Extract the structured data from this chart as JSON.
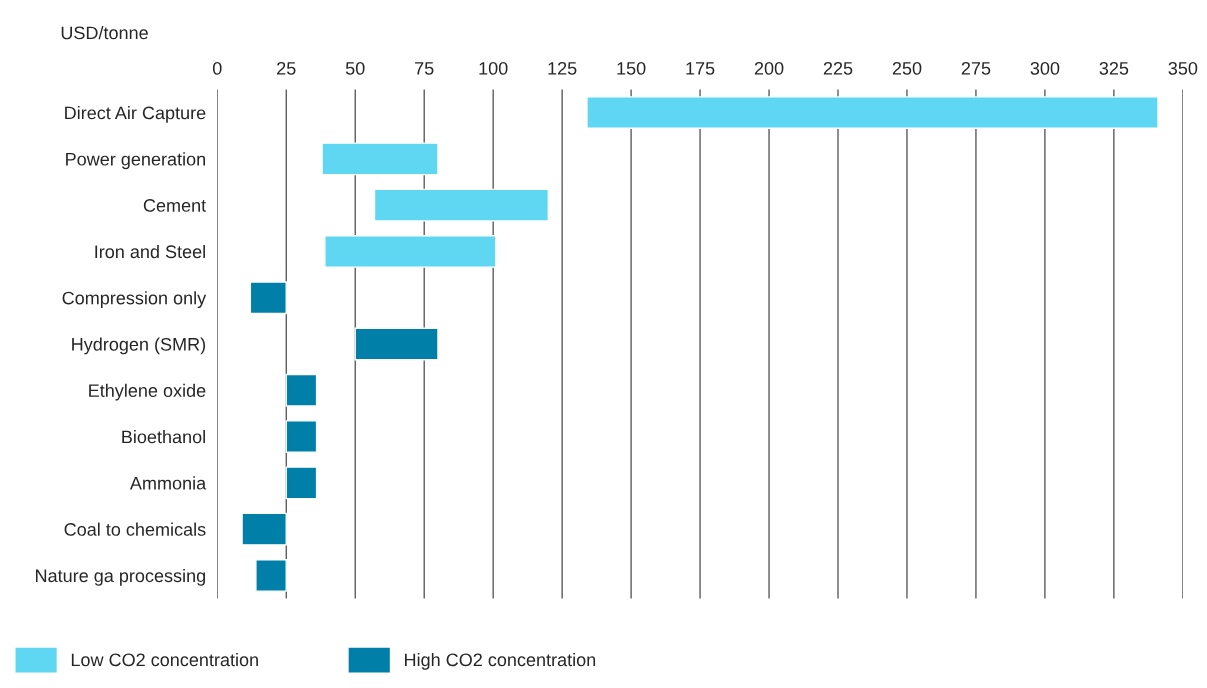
{
  "chart_data": {
    "type": "bar",
    "orientation": "horizontal",
    "xlabel": "USD/tonne",
    "categories": [
      "Direct Air Capture",
      "Power generation",
      "Cement",
      "Iron and Steel",
      "Compression only",
      "Hydrogen (SMR)",
      "Ethylene oxide",
      "Bioethanol",
      "Ammonia",
      "Coal to chemicals",
      "Nature ga processing"
    ],
    "series": [
      {
        "name": "Low CO2 concentration",
        "color": "#5fd7f2",
        "base": [
          134,
          38,
          57,
          39,
          null,
          null,
          null,
          null,
          null,
          null,
          null
        ],
        "values": [
          207,
          42,
          63,
          62,
          null,
          null,
          null,
          null,
          null,
          null,
          null
        ]
      },
      {
        "name": "High CO2 concentration",
        "color": "#007fa8",
        "base": [
          null,
          null,
          null,
          null,
          12,
          50,
          25,
          25,
          25,
          9,
          14
        ],
        "values": [
          null,
          null,
          null,
          null,
          13,
          30,
          11,
          11,
          11,
          16,
          11
        ]
      }
    ],
    "xlim": [
      0,
      350
    ],
    "xticks": [
      0,
      25,
      50,
      75,
      100,
      125,
      150,
      175,
      200,
      225,
      250,
      275,
      300,
      325,
      350
    ],
    "grid": "x",
    "legend": "bottom left"
  }
}
